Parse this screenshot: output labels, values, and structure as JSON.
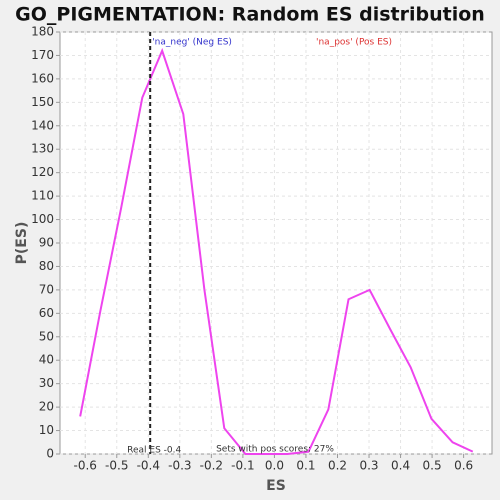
{
  "chart_data": {
    "type": "line",
    "title": "GO_PIGMENTATION: Random ES distribution",
    "x_label": "ES",
    "y_label": "P(ES)",
    "x": [
      -0.616,
      -0.552,
      -0.486,
      -0.419,
      -0.356,
      -0.289,
      -0.222,
      -0.159,
      -0.092,
      -0.025,
      0.041,
      0.108,
      0.171,
      0.235,
      0.302,
      0.368,
      0.432,
      0.498,
      0.565,
      0.629
    ],
    "series": [
      {
        "name": "P(ES)",
        "color": "#ee44ee",
        "values": [
          16,
          61,
          105,
          152,
          172,
          145,
          70,
          11,
          0,
          0,
          0,
          1,
          19,
          66,
          70,
          53,
          37,
          15,
          5,
          1
        ]
      }
    ],
    "xlim": [
      -0.68,
      0.69
    ],
    "ylim": [
      0,
      180
    ],
    "xticks": [
      -0.6,
      -0.5,
      -0.4,
      -0.3,
      -0.2,
      -0.1,
      {
        "value": 0,
        "label": "0.0"
      },
      0.1,
      0.2,
      0.3,
      0.4,
      0.5,
      0.6
    ],
    "yticks": [
      0,
      10,
      20,
      30,
      40,
      50,
      60,
      70,
      80,
      90,
      100,
      110,
      120,
      130,
      140,
      150,
      160,
      170,
      180
    ],
    "grid": true,
    "real_es": {
      "value": -0.394,
      "label": "Real ES -0.4"
    },
    "annotations": {
      "neg": "'na_neg' (Neg ES)",
      "pos": "'na_pos' (Pos ES)",
      "pos_scores": "Sets with pos scores: 27%"
    }
  }
}
